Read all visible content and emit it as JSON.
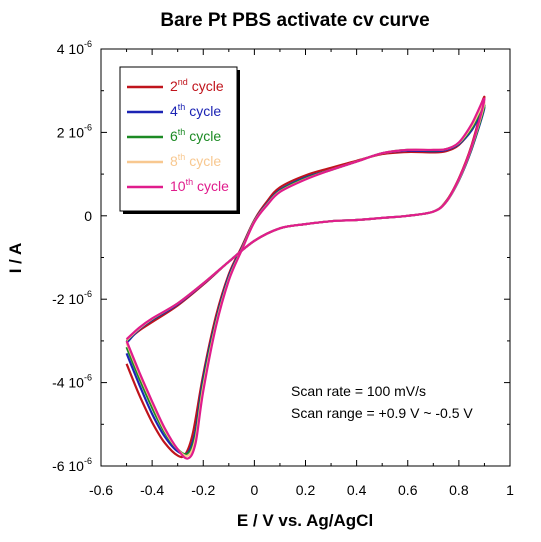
{
  "chart_data": {
    "type": "line",
    "title": "Bare Pt PBS activate cv curve",
    "xlabel": "E / V vs. Ag/AgCl",
    "ylabel": "I / A",
    "xlim": [
      -0.6,
      1.0
    ],
    "ylim": [
      -6e-06,
      4e-06
    ],
    "xticks": [
      {
        "v": -0.6,
        "label": "-0.6"
      },
      {
        "v": -0.4,
        "label": "-0.4"
      },
      {
        "v": -0.2,
        "label": "-0.2"
      },
      {
        "v": 0,
        "label": "0"
      },
      {
        "v": 0.2,
        "label": "0.2"
      },
      {
        "v": 0.4,
        "label": "0.4"
      },
      {
        "v": 0.6,
        "label": "0.6"
      },
      {
        "v": 0.8,
        "label": "0.8"
      },
      {
        "v": 1.0,
        "label": "1"
      }
    ],
    "yticks": [
      {
        "v": 4e-06,
        "mant": "4 10",
        "exp": "-6"
      },
      {
        "v": 2e-06,
        "mant": "2 10",
        "exp": "-6"
      },
      {
        "v": 0,
        "mant": "0",
        "exp": ""
      },
      {
        "v": -2e-06,
        "mant": "-2 10",
        "exp": "-6"
      },
      {
        "v": -4e-06,
        "mant": "-4 10",
        "exp": "-6"
      },
      {
        "v": -6e-06,
        "mant": "-6 10",
        "exp": "-6"
      }
    ],
    "grid": false,
    "legend_position": "top-left",
    "annotations": [
      "Scan rate = 100 mV/s",
      "Scan range = +0.9 V ~ -0.5 V"
    ],
    "series": [
      {
        "num": "2",
        "sup": "nd",
        "suffix": " cycle",
        "color": "#c0141c",
        "forward": [
          [
            -0.5,
            -3.55e-06
          ],
          [
            -0.45,
            -4.3e-06
          ],
          [
            -0.4,
            -4.95e-06
          ],
          [
            -0.35,
            -5.45e-06
          ],
          [
            -0.3,
            -5.75e-06
          ],
          [
            -0.27,
            -5.72e-06
          ],
          [
            -0.24,
            -5.2e-06
          ],
          [
            -0.2,
            -3.8e-06
          ],
          [
            -0.15,
            -2.4e-06
          ],
          [
            -0.1,
            -1.4e-06
          ],
          [
            -0.05,
            -7.5e-07
          ],
          [
            0,
            -1e-07
          ],
          [
            0.05,
            3.5e-07
          ],
          [
            0.1,
            6.8e-07
          ],
          [
            0.2,
            9.7e-07
          ],
          [
            0.3,
            1.15e-06
          ],
          [
            0.4,
            1.32e-06
          ],
          [
            0.5,
            1.48e-06
          ],
          [
            0.6,
            1.53e-06
          ],
          [
            0.7,
            1.52e-06
          ],
          [
            0.75,
            1.55e-06
          ],
          [
            0.8,
            1.7e-06
          ],
          [
            0.85,
            2.1e-06
          ],
          [
            0.9,
            2.85e-06
          ]
        ],
        "reverse": [
          [
            0.9,
            2.7e-06
          ],
          [
            0.85,
            1.7e-06
          ],
          [
            0.8,
            9e-07
          ],
          [
            0.75,
            3.5e-07
          ],
          [
            0.7,
            1e-07
          ],
          [
            0.6,
            0.0
          ],
          [
            0.5,
            -5e-08
          ],
          [
            0.4,
            -1e-07
          ],
          [
            0.3,
            -1.3e-07
          ],
          [
            0.2,
            -2e-07
          ],
          [
            0.1,
            -3e-07
          ],
          [
            0,
            -6e-07
          ],
          [
            -0.1,
            -1.1e-06
          ],
          [
            -0.2,
            -1.65e-06
          ],
          [
            -0.3,
            -2.15e-06
          ],
          [
            -0.4,
            -2.55e-06
          ],
          [
            -0.45,
            -2.75e-06
          ],
          [
            -0.5,
            -3e-06
          ]
        ]
      },
      {
        "num": "4",
        "sup": "th",
        "suffix": " cycle",
        "color": "#1c24b4",
        "forward": [
          [
            -0.5,
            -3.3e-06
          ],
          [
            -0.45,
            -4.05e-06
          ],
          [
            -0.4,
            -4.75e-06
          ],
          [
            -0.35,
            -5.3e-06
          ],
          [
            -0.3,
            -5.65e-06
          ],
          [
            -0.26,
            -5.68e-06
          ],
          [
            -0.23,
            -5.15e-06
          ],
          [
            -0.2,
            -3.9e-06
          ],
          [
            -0.15,
            -2.5e-06
          ],
          [
            -0.1,
            -1.45e-06
          ],
          [
            -0.05,
            -7.8e-07
          ],
          [
            0,
            -1.2e-07
          ],
          [
            0.05,
            3e-07
          ],
          [
            0.1,
            6.2e-07
          ],
          [
            0.2,
            9.2e-07
          ],
          [
            0.3,
            1.1e-06
          ],
          [
            0.4,
            1.3e-06
          ],
          [
            0.5,
            1.5e-06
          ],
          [
            0.6,
            1.56e-06
          ],
          [
            0.7,
            1.55e-06
          ],
          [
            0.75,
            1.58e-06
          ],
          [
            0.8,
            1.72e-06
          ],
          [
            0.85,
            2.05e-06
          ],
          [
            0.9,
            2.6e-06
          ]
        ],
        "reverse": [
          [
            0.9,
            2.5e-06
          ],
          [
            0.85,
            1.6e-06
          ],
          [
            0.8,
            8.5e-07
          ],
          [
            0.75,
            3.3e-07
          ],
          [
            0.7,
            1e-07
          ],
          [
            0.6,
            0.0
          ],
          [
            0.5,
            -5e-08
          ],
          [
            0.4,
            -1e-07
          ],
          [
            0.3,
            -1.3e-07
          ],
          [
            0.2,
            -2e-07
          ],
          [
            0.1,
            -3e-07
          ],
          [
            0,
            -6e-07
          ],
          [
            -0.1,
            -1.1e-06
          ],
          [
            -0.2,
            -1.63e-06
          ],
          [
            -0.3,
            -2.12e-06
          ],
          [
            -0.4,
            -2.5e-06
          ],
          [
            -0.45,
            -2.72e-06
          ],
          [
            -0.5,
            -3.05e-06
          ]
        ]
      },
      {
        "num": "6",
        "sup": "th",
        "suffix": " cycle",
        "color": "#1c8a24",
        "forward": [
          [
            -0.5,
            -3.15e-06
          ],
          [
            -0.45,
            -3.9e-06
          ],
          [
            -0.4,
            -4.6e-06
          ],
          [
            -0.35,
            -5.2e-06
          ],
          [
            -0.3,
            -5.6e-06
          ],
          [
            -0.26,
            -5.7e-06
          ],
          [
            -0.23,
            -5.25e-06
          ],
          [
            -0.2,
            -4e-06
          ],
          [
            -0.15,
            -2.55e-06
          ],
          [
            -0.1,
            -1.5e-06
          ],
          [
            -0.05,
            -8e-07
          ],
          [
            0,
            -1.3e-07
          ],
          [
            0.05,
            2.8e-07
          ],
          [
            0.1,
            6e-07
          ],
          [
            0.2,
            9e-07
          ],
          [
            0.3,
            1.1e-06
          ],
          [
            0.4,
            1.3e-06
          ],
          [
            0.5,
            1.5e-06
          ],
          [
            0.6,
            1.58e-06
          ],
          [
            0.7,
            1.57e-06
          ],
          [
            0.75,
            1.6e-06
          ],
          [
            0.8,
            1.74e-06
          ],
          [
            0.85,
            2.1e-06
          ],
          [
            0.9,
            2.65e-06
          ]
        ],
        "reverse": [
          [
            0.9,
            2.55e-06
          ],
          [
            0.85,
            1.62e-06
          ],
          [
            0.8,
            8.6e-07
          ],
          [
            0.75,
            3.3e-07
          ],
          [
            0.7,
            1e-07
          ],
          [
            0.6,
            0.0
          ],
          [
            0.5,
            -5e-08
          ],
          [
            0.4,
            -1e-07
          ],
          [
            0.3,
            -1.3e-07
          ],
          [
            0.2,
            -2e-07
          ],
          [
            0.1,
            -3e-07
          ],
          [
            0,
            -6e-07
          ],
          [
            -0.1,
            -1.1e-06
          ],
          [
            -0.2,
            -1.62e-06
          ],
          [
            -0.3,
            -2.1e-06
          ],
          [
            -0.4,
            -2.48e-06
          ],
          [
            -0.45,
            -2.7e-06
          ],
          [
            -0.5,
            -3e-06
          ]
        ]
      },
      {
        "num": "8",
        "sup": "th",
        "suffix": " cycle",
        "color": "#f8c890",
        "forward": [
          [
            -0.5,
            -3.05e-06
          ],
          [
            -0.45,
            -3.8e-06
          ],
          [
            -0.4,
            -4.5e-06
          ],
          [
            -0.35,
            -5.15e-06
          ],
          [
            -0.3,
            -5.6e-06
          ],
          [
            -0.26,
            -5.75e-06
          ],
          [
            -0.23,
            -5.35e-06
          ],
          [
            -0.2,
            -4.1e-06
          ],
          [
            -0.15,
            -2.6e-06
          ],
          [
            -0.1,
            -1.52e-06
          ],
          [
            -0.05,
            -8.2e-07
          ],
          [
            0,
            -1.4e-07
          ],
          [
            0.05,
            2.7e-07
          ],
          [
            0.1,
            5.8e-07
          ],
          [
            0.2,
            8.8e-07
          ],
          [
            0.3,
            1.1e-06
          ],
          [
            0.4,
            1.3e-06
          ],
          [
            0.5,
            1.5e-06
          ],
          [
            0.6,
            1.58e-06
          ],
          [
            0.7,
            1.58e-06
          ],
          [
            0.75,
            1.6e-06
          ],
          [
            0.8,
            1.75e-06
          ],
          [
            0.85,
            2.15e-06
          ],
          [
            0.9,
            2.72e-06
          ]
        ],
        "reverse": [
          [
            0.9,
            2.6e-06
          ],
          [
            0.85,
            1.65e-06
          ],
          [
            0.8,
            8.7e-07
          ],
          [
            0.75,
            3.3e-07
          ],
          [
            0.7,
            1e-07
          ],
          [
            0.6,
            0.0
          ],
          [
            0.5,
            -5e-08
          ],
          [
            0.4,
            -1e-07
          ],
          [
            0.3,
            -1.3e-07
          ],
          [
            0.2,
            -2e-07
          ],
          [
            0.1,
            -3e-07
          ],
          [
            0,
            -6e-07
          ],
          [
            -0.1,
            -1.1e-06
          ],
          [
            -0.2,
            -1.62e-06
          ],
          [
            -0.3,
            -2.1e-06
          ],
          [
            -0.4,
            -2.47e-06
          ],
          [
            -0.45,
            -2.7e-06
          ],
          [
            -0.5,
            -2.98e-06
          ]
        ]
      },
      {
        "num": "10",
        "sup": "th",
        "suffix": " cycle",
        "color": "#e01c8c",
        "forward": [
          [
            -0.5,
            -3e-06
          ],
          [
            -0.45,
            -3.75e-06
          ],
          [
            -0.4,
            -4.45e-06
          ],
          [
            -0.35,
            -5.1e-06
          ],
          [
            -0.3,
            -5.6e-06
          ],
          [
            -0.26,
            -5.82e-06
          ],
          [
            -0.23,
            -5.45e-06
          ],
          [
            -0.2,
            -4.2e-06
          ],
          [
            -0.15,
            -2.65e-06
          ],
          [
            -0.1,
            -1.55e-06
          ],
          [
            -0.05,
            -8.3e-07
          ],
          [
            0,
            -1.5e-07
          ],
          [
            0.05,
            2.6e-07
          ],
          [
            0.1,
            5.7e-07
          ],
          [
            0.2,
            8.7e-07
          ],
          [
            0.3,
            1.1e-06
          ],
          [
            0.4,
            1.3e-06
          ],
          [
            0.5,
            1.5e-06
          ],
          [
            0.6,
            1.58e-06
          ],
          [
            0.7,
            1.58e-06
          ],
          [
            0.75,
            1.6e-06
          ],
          [
            0.8,
            1.76e-06
          ],
          [
            0.85,
            2.2e-06
          ],
          [
            0.9,
            2.8e-06
          ]
        ],
        "reverse": [
          [
            0.9,
            2.65e-06
          ],
          [
            0.85,
            1.66e-06
          ],
          [
            0.8,
            8.8e-07
          ],
          [
            0.75,
            3.3e-07
          ],
          [
            0.7,
            1e-07
          ],
          [
            0.6,
            0.0
          ],
          [
            0.5,
            -5e-08
          ],
          [
            0.4,
            -1e-07
          ],
          [
            0.3,
            -1.3e-07
          ],
          [
            0.2,
            -2e-07
          ],
          [
            0.1,
            -3e-07
          ],
          [
            0,
            -6e-07
          ],
          [
            -0.1,
            -1.1e-06
          ],
          [
            -0.2,
            -1.62e-06
          ],
          [
            -0.3,
            -2.1e-06
          ],
          [
            -0.4,
            -2.46e-06
          ],
          [
            -0.45,
            -2.68e-06
          ],
          [
            -0.5,
            -2.96e-06
          ]
        ]
      }
    ]
  }
}
